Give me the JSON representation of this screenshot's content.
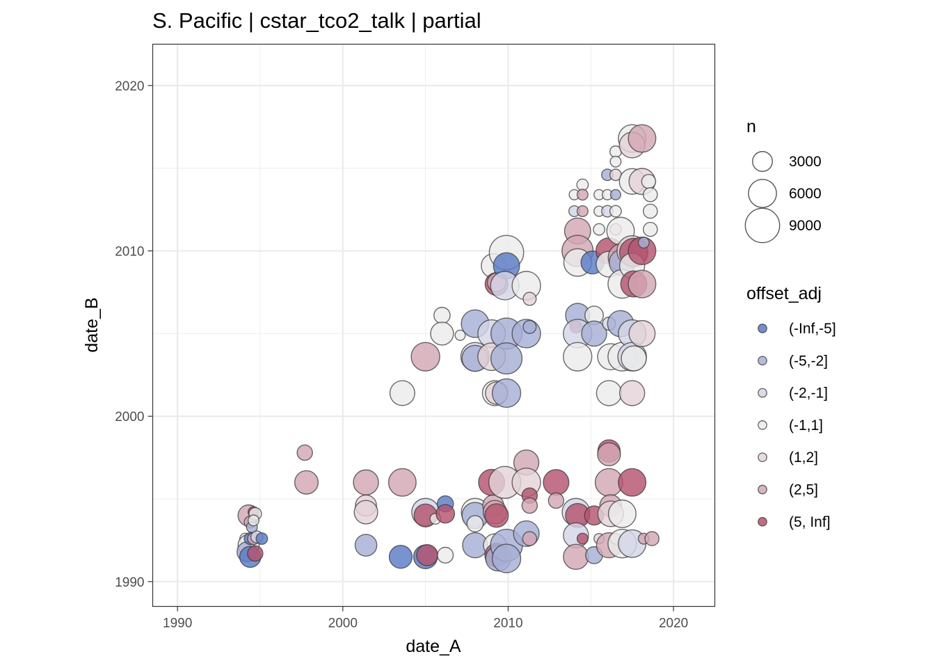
{
  "chart_data": {
    "type": "scatter",
    "title": "S. Pacific | cstar_tco2_talk | partial",
    "xlabel": "date_A",
    "ylabel": "date_B",
    "xlim": [
      1988.5,
      2022.5
    ],
    "ylim": [
      1988.5,
      2022.5
    ],
    "x_ticks": [
      "1990",
      "2000",
      "2010",
      "2020"
    ],
    "y_ticks": [
      "1990",
      "2000",
      "2010",
      "2020"
    ],
    "grid": true,
    "colors": {
      "(-Inf,-5]": "#5a7bc6",
      "(-5,-2]": "#a7b0d6",
      "(-2,-1]": "#d4d6e8",
      "(-1,1]": "#ececec",
      "(1,2]": "#e4d3d8",
      "(2,5]": "#d3a7b5",
      "(5, Inf]": "#b5546f"
    },
    "size_legend": {
      "title": "n",
      "entries": [
        {
          "label": "3000",
          "n": 3000
        },
        {
          "label": "6000",
          "n": 6000
        },
        {
          "label": "9000",
          "n": 9000
        }
      ]
    },
    "color_legend": {
      "title": "offset_adj",
      "entries": [
        "(-Inf,-5]",
        "(-5,-2]",
        "(-2,-1]",
        "(-1,1]",
        "(1,2]",
        "(2,5]",
        "(5, Inf]"
      ]
    },
    "points": [
      {
        "x": 1994.1,
        "y": 1992.6,
        "n": 900,
        "c": "(-1,1]"
      },
      {
        "x": 1994.3,
        "y": 1994.0,
        "n": 3400,
        "c": "(2,5]"
      },
      {
        "x": 1994.3,
        "y": 1992.2,
        "n": 3400,
        "c": "(-1,1]"
      },
      {
        "x": 1994.2,
        "y": 1991.8,
        "n": 3000,
        "c": "(-5,-2]"
      },
      {
        "x": 1994.4,
        "y": 1991.5,
        "n": 3400,
        "c": "(-Inf,-5]"
      },
      {
        "x": 1994.4,
        "y": 1993.6,
        "n": 1100,
        "c": "(2,5]"
      },
      {
        "x": 1994.5,
        "y": 1993.3,
        "n": 900,
        "c": "(-5,-2]"
      },
      {
        "x": 1994.4,
        "y": 1992.6,
        "n": 1100,
        "c": "(-Inf,-5]"
      },
      {
        "x": 1994.6,
        "y": 1994.2,
        "n": 900,
        "c": "(5, Inf]"
      },
      {
        "x": 1994.7,
        "y": 1994.1,
        "n": 1200,
        "c": "(-1,1]"
      },
      {
        "x": 1994.6,
        "y": 1993.7,
        "n": 900,
        "c": "(-1,1]"
      },
      {
        "x": 1994.6,
        "y": 1992.6,
        "n": 1100,
        "c": "(2,5]"
      },
      {
        "x": 1994.8,
        "y": 1992.7,
        "n": 1100,
        "c": "(-2,-1]"
      },
      {
        "x": 1994.7,
        "y": 1991.7,
        "n": 1800,
        "c": "(5, Inf]"
      },
      {
        "x": 1995.1,
        "y": 1992.6,
        "n": 1000,
        "c": "(-Inf,-5]"
      },
      {
        "x": 1997.7,
        "y": 1997.8,
        "n": 1800,
        "c": "(2,5]"
      },
      {
        "x": 1997.8,
        "y": 1996.0,
        "n": 4200,
        "c": "(2,5]"
      },
      {
        "x": 2001.4,
        "y": 1996.0,
        "n": 4800,
        "c": "(2,5]"
      },
      {
        "x": 2001.4,
        "y": 1994.6,
        "n": 3400,
        "c": "(1,2]"
      },
      {
        "x": 2001.4,
        "y": 1994.2,
        "n": 4200,
        "c": "(1,2]"
      },
      {
        "x": 2001.4,
        "y": 1992.2,
        "n": 3600,
        "c": "(-5,-2]"
      },
      {
        "x": 2003.5,
        "y": 1991.5,
        "n": 4000,
        "c": "(-Inf,-5]"
      },
      {
        "x": 2003.6,
        "y": 1996.0,
        "n": 5800,
        "c": "(2,5]"
      },
      {
        "x": 2003.6,
        "y": 2001.4,
        "n": 4700,
        "c": "(-1,1]"
      },
      {
        "x": 2005.0,
        "y": 2003.6,
        "n": 6200,
        "c": "(2,5]"
      },
      {
        "x": 2005.0,
        "y": 1994.2,
        "n": 5800,
        "c": "(-2,-1]"
      },
      {
        "x": 2005.0,
        "y": 1994.0,
        "n": 4000,
        "c": "(5, Inf]"
      },
      {
        "x": 2005.0,
        "y": 1991.5,
        "n": 4300,
        "c": "(-Inf,-5]"
      },
      {
        "x": 2005.1,
        "y": 1991.6,
        "n": 3400,
        "c": "(5, Inf]"
      },
      {
        "x": 2005.6,
        "y": 1993.8,
        "n": 900,
        "c": "(-1,1]"
      },
      {
        "x": 2006.0,
        "y": 2006.1,
        "n": 2000,
        "c": "(-1,1]"
      },
      {
        "x": 2006.0,
        "y": 2005.0,
        "n": 4000,
        "c": "(-1,1]"
      },
      {
        "x": 2006.2,
        "y": 1994.7,
        "n": 2000,
        "c": "(-Inf,-5]"
      },
      {
        "x": 2006.2,
        "y": 1994.1,
        "n": 2600,
        "c": "(5, Inf]"
      },
      {
        "x": 2006.2,
        "y": 1991.6,
        "n": 1900,
        "c": "(-1,1]"
      },
      {
        "x": 2007.1,
        "y": 2004.9,
        "n": 800,
        "c": "(-1,1]"
      },
      {
        "x": 2008.0,
        "y": 2005.6,
        "n": 5800,
        "c": "(-5,-2]"
      },
      {
        "x": 2008.0,
        "y": 2003.6,
        "n": 6200,
        "c": "(-2,-1]"
      },
      {
        "x": 2008.0,
        "y": 2003.5,
        "n": 5200,
        "c": "(-5,-2]"
      },
      {
        "x": 2008.0,
        "y": 1994.2,
        "n": 5800,
        "c": "(-1,1]"
      },
      {
        "x": 2008.0,
        "y": 1994.0,
        "n": 5200,
        "c": "(-5,-2]"
      },
      {
        "x": 2008.0,
        "y": 1993.5,
        "n": 2000,
        "c": "(-1,1]"
      },
      {
        "x": 2008.0,
        "y": 1992.2,
        "n": 4800,
        "c": "(-5,-2]"
      },
      {
        "x": 2009.1,
        "y": 2009.1,
        "n": 4400,
        "c": "(-1,1]"
      },
      {
        "x": 2009.3,
        "y": 2008.0,
        "n": 4000,
        "c": "(5, Inf]"
      },
      {
        "x": 2009.3,
        "y": 2008.1,
        "n": 2600,
        "c": "(2,5]"
      },
      {
        "x": 2009.0,
        "y": 2005.0,
        "n": 5800,
        "c": "(-2,-1]"
      },
      {
        "x": 2009.0,
        "y": 2003.6,
        "n": 5800,
        "c": "(1,2]"
      },
      {
        "x": 2009.2,
        "y": 2001.4,
        "n": 4800,
        "c": "(-1,1]"
      },
      {
        "x": 2009.3,
        "y": 2001.4,
        "n": 3800,
        "c": "(1,2]"
      },
      {
        "x": 2009.0,
        "y": 1996.0,
        "n": 5200,
        "c": "(5, Inf]"
      },
      {
        "x": 2009.1,
        "y": 1994.6,
        "n": 3400,
        "c": "(2,5]"
      },
      {
        "x": 2009.2,
        "y": 1994.2,
        "n": 4200,
        "c": "(2,5]"
      },
      {
        "x": 2009.3,
        "y": 1994.0,
        "n": 4200,
        "c": "(5, Inf]"
      },
      {
        "x": 2009.2,
        "y": 1992.2,
        "n": 4000,
        "c": "(-1,1]"
      },
      {
        "x": 2009.3,
        "y": 1991.6,
        "n": 4200,
        "c": "(5, Inf]"
      },
      {
        "x": 2009.4,
        "y": 1991.4,
        "n": 4800,
        "c": "(-5,-2]"
      },
      {
        "x": 2009.9,
        "y": 2009.9,
        "n": 9000,
        "c": "(-1,1]"
      },
      {
        "x": 2009.9,
        "y": 2009.1,
        "n": 5200,
        "c": "(-Inf,-5]"
      },
      {
        "x": 2009.8,
        "y": 2007.9,
        "n": 6200,
        "c": "(-2,-1]"
      },
      {
        "x": 2009.9,
        "y": 2005.0,
        "n": 7400,
        "c": "(-5,-2]"
      },
      {
        "x": 2009.9,
        "y": 2003.5,
        "n": 7400,
        "c": "(-5,-2]"
      },
      {
        "x": 2009.9,
        "y": 2001.4,
        "n": 6200,
        "c": "(-5,-2]"
      },
      {
        "x": 2009.8,
        "y": 1996.0,
        "n": 7800,
        "c": "(1,2]"
      },
      {
        "x": 2009.9,
        "y": 1992.2,
        "n": 7800,
        "c": "(-5,-2]"
      },
      {
        "x": 2009.9,
        "y": 1991.4,
        "n": 6200,
        "c": "(-5,-2]"
      },
      {
        "x": 2011.1,
        "y": 2007.9,
        "n": 6200,
        "c": "(-1,1]"
      },
      {
        "x": 2011.3,
        "y": 2007.1,
        "n": 1300,
        "c": "(1,2]"
      },
      {
        "x": 2011.1,
        "y": 2005.0,
        "n": 6200,
        "c": "(-5,-2]"
      },
      {
        "x": 2011.3,
        "y": 2005.4,
        "n": 1300,
        "c": "(-5,-2]"
      },
      {
        "x": 2011.1,
        "y": 1997.2,
        "n": 4800,
        "c": "(2,5]"
      },
      {
        "x": 2011.1,
        "y": 1996.0,
        "n": 6200,
        "c": "(1,2]"
      },
      {
        "x": 2011.3,
        "y": 1995.2,
        "n": 1800,
        "c": "(5, Inf]"
      },
      {
        "x": 2011.3,
        "y": 1994.6,
        "n": 1800,
        "c": "(2,5]"
      },
      {
        "x": 2011.1,
        "y": 1992.9,
        "n": 5000,
        "c": "(-5,-2]"
      },
      {
        "x": 2011.3,
        "y": 1992.6,
        "n": 1500,
        "c": "(2,5]"
      },
      {
        "x": 2012.9,
        "y": 1996.0,
        "n": 5000,
        "c": "(5, Inf]"
      },
      {
        "x": 2012.9,
        "y": 1994.9,
        "n": 1800,
        "c": "(2,5]"
      },
      {
        "x": 2014.0,
        "y": 2013.4,
        "n": 800,
        "c": "(-1,1]"
      },
      {
        "x": 2014.0,
        "y": 2012.4,
        "n": 900,
        "c": "(-2,-1]"
      },
      {
        "x": 2014.2,
        "y": 2011.2,
        "n": 5200,
        "c": "(2,5]"
      },
      {
        "x": 2014.2,
        "y": 2010.0,
        "n": 7400,
        "c": "(2,5]"
      },
      {
        "x": 2014.2,
        "y": 2009.3,
        "n": 5800,
        "c": "(-1,1]"
      },
      {
        "x": 2014.2,
        "y": 2006.1,
        "n": 4400,
        "c": "(-5,-2]"
      },
      {
        "x": 2014.1,
        "y": 2005.4,
        "n": 1100,
        "c": "(5, Inf]"
      },
      {
        "x": 2014.2,
        "y": 2005.0,
        "n": 6200,
        "c": "(-2,-1]"
      },
      {
        "x": 2014.2,
        "y": 2003.6,
        "n": 6200,
        "c": "(-1,1]"
      },
      {
        "x": 2014.1,
        "y": 1994.2,
        "n": 5800,
        "c": "(-2,-1]"
      },
      {
        "x": 2014.2,
        "y": 1994.0,
        "n": 4400,
        "c": "(5, Inf]"
      },
      {
        "x": 2014.1,
        "y": 1992.8,
        "n": 4800,
        "c": "(-2,-1]"
      },
      {
        "x": 2014.1,
        "y": 1991.5,
        "n": 4800,
        "c": "(2,5]"
      },
      {
        "x": 2014.5,
        "y": 2014.0,
        "n": 1000,
        "c": "(-1,1]"
      },
      {
        "x": 2014.5,
        "y": 2013.4,
        "n": 900,
        "c": "(2,5]"
      },
      {
        "x": 2014.5,
        "y": 2012.4,
        "n": 900,
        "c": "(2,5]"
      },
      {
        "x": 2014.5,
        "y": 1992.6,
        "n": 900,
        "c": "(5, Inf]"
      },
      {
        "x": 2015.1,
        "y": 2009.3,
        "n": 4000,
        "c": "(-Inf,-5]"
      },
      {
        "x": 2015.2,
        "y": 2006.1,
        "n": 2600,
        "c": "(-1,1]"
      },
      {
        "x": 2015.2,
        "y": 2005.0,
        "n": 4800,
        "c": "(-5,-2]"
      },
      {
        "x": 2015.2,
        "y": 1994.0,
        "n": 2800,
        "c": "(5, Inf]"
      },
      {
        "x": 2015.2,
        "y": 1991.6,
        "n": 2200,
        "c": "(-5,-2]"
      },
      {
        "x": 2015.5,
        "y": 2013.4,
        "n": 800,
        "c": "(-1,1]"
      },
      {
        "x": 2015.5,
        "y": 2012.4,
        "n": 800,
        "c": "(-1,1]"
      },
      {
        "x": 2015.5,
        "y": 2011.3,
        "n": 1000,
        "c": "(-1,1]"
      },
      {
        "x": 2015.5,
        "y": 1992.6,
        "n": 800,
        "c": "(1,2]"
      },
      {
        "x": 2016.0,
        "y": 2014.6,
        "n": 1000,
        "c": "(-5,-2]"
      },
      {
        "x": 2016.0,
        "y": 2013.4,
        "n": 800,
        "c": "(-1,1]"
      },
      {
        "x": 2016.0,
        "y": 2012.4,
        "n": 1000,
        "c": "(-2,-1]"
      },
      {
        "x": 2016.1,
        "y": 2010.0,
        "n": 5200,
        "c": "(5, Inf]"
      },
      {
        "x": 2016.1,
        "y": 2009.2,
        "n": 5000,
        "c": "(-1,1]"
      },
      {
        "x": 2016.1,
        "y": 2005.6,
        "n": 1300,
        "c": "(-2,-1]"
      },
      {
        "x": 2016.2,
        "y": 2003.6,
        "n": 5200,
        "c": "(-1,1]"
      },
      {
        "x": 2016.1,
        "y": 2001.4,
        "n": 4800,
        "c": "(-1,1]"
      },
      {
        "x": 2016.1,
        "y": 1997.9,
        "n": 3800,
        "c": "(5, Inf]"
      },
      {
        "x": 2016.1,
        "y": 1997.7,
        "n": 4000,
        "c": "(2,5]"
      },
      {
        "x": 2016.1,
        "y": 1996.0,
        "n": 5800,
        "c": "(2,5]"
      },
      {
        "x": 2016.2,
        "y": 1994.6,
        "n": 3600,
        "c": "(2,5]"
      },
      {
        "x": 2016.2,
        "y": 1994.1,
        "n": 5000,
        "c": "(1,2]"
      },
      {
        "x": 2016.1,
        "y": 1992.2,
        "n": 4800,
        "c": "(2,5]"
      },
      {
        "x": 2016.5,
        "y": 2016.0,
        "n": 1000,
        "c": "(-1,1]"
      },
      {
        "x": 2016.5,
        "y": 2015.4,
        "n": 900,
        "c": "(-1,1]"
      },
      {
        "x": 2016.5,
        "y": 2014.6,
        "n": 1000,
        "c": "(1,2]"
      },
      {
        "x": 2016.5,
        "y": 2013.4,
        "n": 800,
        "c": "(-5,-2]"
      },
      {
        "x": 2016.5,
        "y": 2012.4,
        "n": 1000,
        "c": "(-1,1]"
      },
      {
        "x": 2016.5,
        "y": 2011.3,
        "n": 1000,
        "c": "(1,2]"
      },
      {
        "x": 2016.5,
        "y": 1992.6,
        "n": 900,
        "c": "(1,2]"
      },
      {
        "x": 2016.8,
        "y": 2011.2,
        "n": 5800,
        "c": "(-1,1]"
      },
      {
        "x": 2016.9,
        "y": 2009.6,
        "n": 6000,
        "c": "(2,5]"
      },
      {
        "x": 2016.9,
        "y": 2009.3,
        "n": 5200,
        "c": "(-5,-2]"
      },
      {
        "x": 2016.9,
        "y": 2008.0,
        "n": 6200,
        "c": "(-1,1]"
      },
      {
        "x": 2016.8,
        "y": 2005.6,
        "n": 5200,
        "c": "(-5,-2]"
      },
      {
        "x": 2016.9,
        "y": 2003.6,
        "n": 6200,
        "c": "(-1,1]"
      },
      {
        "x": 2016.9,
        "y": 1994.1,
        "n": 5800,
        "c": "(-1,1]"
      },
      {
        "x": 2016.9,
        "y": 1992.3,
        "n": 6200,
        "c": "(-1,1]"
      },
      {
        "x": 2017.5,
        "y": 2016.8,
        "n": 5800,
        "c": "(-1,1]"
      },
      {
        "x": 2017.5,
        "y": 2016.4,
        "n": 5000,
        "c": "(1,2]"
      },
      {
        "x": 2017.5,
        "y": 2014.2,
        "n": 5000,
        "c": "(-1,1]"
      },
      {
        "x": 2017.5,
        "y": 2010.0,
        "n": 7000,
        "c": "(1,2]"
      },
      {
        "x": 2017.6,
        "y": 2009.9,
        "n": 6200,
        "c": "(5, Inf]"
      },
      {
        "x": 2017.5,
        "y": 2009.1,
        "n": 4800,
        "c": "(-1,1]"
      },
      {
        "x": 2017.6,
        "y": 2008.0,
        "n": 5200,
        "c": "(5, Inf]"
      },
      {
        "x": 2017.5,
        "y": 2005.0,
        "n": 5800,
        "c": "(-2,-1]"
      },
      {
        "x": 2017.5,
        "y": 2003.6,
        "n": 6200,
        "c": "(-2,-1]"
      },
      {
        "x": 2017.6,
        "y": 2003.5,
        "n": 4800,
        "c": "(-1,1]"
      },
      {
        "x": 2017.5,
        "y": 2001.4,
        "n": 4800,
        "c": "(1,2]"
      },
      {
        "x": 2017.5,
        "y": 1996.0,
        "n": 5800,
        "c": "(5, Inf]"
      },
      {
        "x": 2017.5,
        "y": 1992.3,
        "n": 5800,
        "c": "(-2,-1]"
      },
      {
        "x": 2018.1,
        "y": 2016.8,
        "n": 5800,
        "c": "(2,5]"
      },
      {
        "x": 2018.1,
        "y": 2014.2,
        "n": 5200,
        "c": "(1,2]"
      },
      {
        "x": 2018.1,
        "y": 2010.0,
        "n": 5800,
        "c": "(5, Inf]"
      },
      {
        "x": 2018.1,
        "y": 2008.0,
        "n": 5800,
        "c": "(2,5]"
      },
      {
        "x": 2018.1,
        "y": 2005.0,
        "n": 5200,
        "c": "(1,2]"
      },
      {
        "x": 2018.2,
        "y": 2010.5,
        "n": 900,
        "c": "(-5,-2]"
      },
      {
        "x": 2018.2,
        "y": 1992.6,
        "n": 900,
        "c": "(2,5]"
      },
      {
        "x": 2018.5,
        "y": 2014.2,
        "n": 1500,
        "c": "(-1,1]"
      },
      {
        "x": 2018.6,
        "y": 2013.4,
        "n": 1500,
        "c": "(-1,1]"
      },
      {
        "x": 2018.6,
        "y": 2012.4,
        "n": 1500,
        "c": "(-1,1]"
      },
      {
        "x": 2018.6,
        "y": 2011.3,
        "n": 1500,
        "c": "(-1,1]"
      },
      {
        "x": 2018.7,
        "y": 1992.6,
        "n": 1500,
        "c": "(2,5]"
      }
    ]
  }
}
